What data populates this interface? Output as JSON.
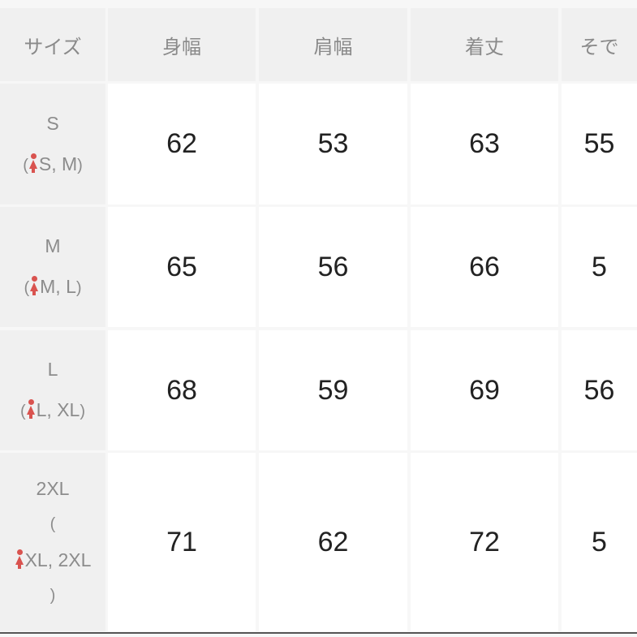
{
  "header": {
    "size_label": "サイズ",
    "columns": [
      "身幅",
      "肩幅",
      "着丈",
      "そで"
    ]
  },
  "rows": [
    {
      "size": "S",
      "fits": "S, M",
      "values": [
        "62",
        "53",
        "63",
        "55"
      ]
    },
    {
      "size": "M",
      "fits": "M, L",
      "values": [
        "65",
        "56",
        "66",
        "5"
      ]
    },
    {
      "size": "L",
      "fits": "L, XL",
      "values": [
        "68",
        "59",
        "69",
        "56"
      ]
    },
    {
      "size": "2XL",
      "fits": "XL, 2XL",
      "values": [
        "71",
        "62",
        "72",
        "5"
      ]
    }
  ],
  "open_paren": "(",
  "close_paren": ")",
  "colors": {
    "icon": "#d9534f",
    "label_bg": "#f0f0f0"
  }
}
